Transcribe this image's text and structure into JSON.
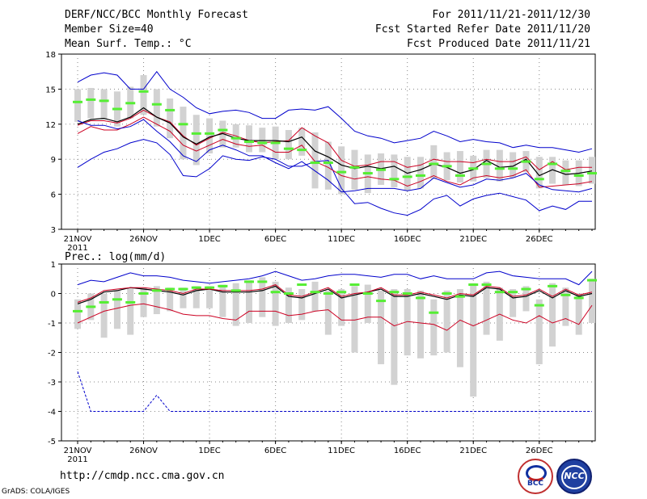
{
  "header": {
    "title": "DERF/NCC/BCC Monthly Forecast",
    "member_size": "Member Size=40",
    "variable": "Mean Surf. Temp.: °C",
    "period": "For 2011/11/21-2011/12/30",
    "fcst_started": "Fcst Started Refer Date 2011/11/20",
    "fcst_produced": "Fcst Produced Date 2011/11/21"
  },
  "footer": {
    "url": "http://cmdp.ncc.cma.gov.cn",
    "grads": "GrADS: COLA/IGES",
    "logo_bcc": "BCC",
    "logo_ncc": "NCC"
  },
  "colors": {
    "envelope": "#0000cc",
    "spread": "#cc0022",
    "mean": "#000000",
    "box": "#d2d2d2",
    "marker": "#55ee33",
    "grid": "#888888"
  },
  "chart_data": [
    {
      "type": "line",
      "title": "Mean Surf. Temp.: °C",
      "ylim": [
        3,
        18
      ],
      "yticks": [
        3,
        6,
        9,
        12,
        15,
        18
      ],
      "xtick_labels": [
        "21NOV",
        "26NOV",
        "1DEC",
        "6DEC",
        "11DEC",
        "16DEC",
        "21DEC",
        "26DEC"
      ],
      "xtick_days": [
        1,
        6,
        11,
        16,
        21,
        26,
        31,
        36
      ],
      "year_label": "2011",
      "days": 40,
      "series": [
        {
          "name": "max",
          "values": [
            8.3,
            9,
            9.6,
            9.9,
            10.4,
            10.7,
            10.4,
            9.4,
            7.6,
            7.5,
            8.2,
            9.3,
            9,
            8.9,
            9.2,
            9,
            8.4,
            8.4,
            8.8,
            8.9,
            6.5,
            5.2,
            5.3,
            4.8,
            4.4,
            4.2,
            4.7,
            5.6,
            5.9,
            5,
            5.6,
            5.9,
            6.1,
            5.8,
            5.5,
            4.6,
            5,
            4.7,
            5.4,
            5.4
          ]
        },
        {
          "name": "upper",
          "values": [
            11.9,
            12.3,
            12.3,
            12.1,
            12.5,
            13.2,
            12.6,
            12.2,
            11,
            10.2,
            10.8,
            11.3,
            11,
            10.6,
            10.4,
            10.5,
            10.6,
            11.7,
            11,
            10.4,
            8.9,
            8.4,
            8.5,
            8.8,
            8.8,
            8.3,
            8.5,
            9,
            8.8,
            8.8,
            8.7,
            9,
            8.8,
            8.8,
            9.2,
            8.1,
            8.8,
            8.1,
            8.3,
            8.3
          ]
        },
        {
          "name": "mean",
          "values": [
            12,
            12.4,
            12.5,
            12.2,
            12.6,
            13.4,
            12.6,
            12.1,
            10.9,
            10.3,
            10.9,
            11.2,
            10.8,
            10.6,
            10.6,
            10.6,
            10.5,
            10.9,
            9.7,
            9.2,
            8.5,
            8.2,
            8.4,
            8.2,
            8.4,
            7.8,
            8.1,
            8.6,
            8.3,
            7.8,
            8.1,
            8.9,
            8.3,
            8.4,
            9,
            7.6,
            8.1,
            7.7,
            7.8,
            8
          ]
        },
        {
          "name": "lower",
          "values": [
            11.2,
            11.8,
            11.5,
            11.5,
            12,
            12.6,
            12,
            11.4,
            10.2,
            9.7,
            10.2,
            10.7,
            10.3,
            10.1,
            10.2,
            9.6,
            9.6,
            10.2,
            8.8,
            8.3,
            7.6,
            7.3,
            7.5,
            7.3,
            7.2,
            6.7,
            7.1,
            7.6,
            7.1,
            6.8,
            7.4,
            7.6,
            7.4,
            7.6,
            8.1,
            6.6,
            6.7,
            6.8,
            6.9,
            7.1
          ]
        },
        {
          "name": "min",
          "values": [
            12.3,
            11.9,
            11.9,
            11.6,
            11.8,
            12.4,
            11.4,
            10.5,
            9.3,
            8.8,
            9.8,
            10.2,
            9.8,
            9.3,
            9.3,
            8.7,
            8.2,
            8.8,
            8,
            7.2,
            6.2,
            6.3,
            6.5,
            6.5,
            6.5,
            6.3,
            6.5,
            7.4,
            7,
            6.6,
            6.8,
            7.3,
            7.2,
            7.4,
            7.8,
            6.8,
            6.4,
            6.3,
            6.2,
            6.5
          ]
        },
        {
          "name": "upper_env",
          "values": [
            15.6,
            16.2,
            16.4,
            16.2,
            15,
            15,
            16.5,
            15,
            14.3,
            13.4,
            12.9,
            13.1,
            13.2,
            13,
            12.5,
            12.5,
            13.2,
            13.3,
            13.2,
            13.5,
            12.5,
            11.4,
            11,
            10.8,
            10.4,
            10.6,
            10.8,
            11.4,
            11,
            10.5,
            10.7,
            10.5,
            10.4,
            10,
            10.2,
            10,
            10,
            9.8,
            9.6,
            9.9
          ]
        }
      ],
      "boxes": [
        [
          12.2,
          15
        ],
        [
          12.5,
          15.1
        ],
        [
          12.4,
          15
        ],
        [
          11.8,
          14.8
        ],
        [
          12.5,
          15.2
        ],
        [
          12.8,
          16.2
        ],
        [
          11.8,
          15
        ],
        [
          10.8,
          14.2
        ],
        [
          9,
          13.5
        ],
        [
          8.5,
          12.8
        ],
        [
          9.5,
          12.5
        ],
        [
          10,
          12.3
        ],
        [
          10,
          12
        ],
        [
          9.6,
          11.9
        ],
        [
          9.6,
          11.7
        ],
        [
          9,
          11.8
        ],
        [
          9,
          11.5
        ],
        [
          9.3,
          11.7
        ],
        [
          6.5,
          11.3
        ],
        [
          6.4,
          10.5
        ],
        [
          6,
          10.1
        ],
        [
          6.4,
          9.8
        ],
        [
          6.1,
          9.4
        ],
        [
          6.8,
          9.5
        ],
        [
          6.6,
          9.4
        ],
        [
          6.3,
          9.2
        ],
        [
          6.5,
          9.2
        ],
        [
          7.3,
          10.2
        ],
        [
          7.2,
          9.6
        ],
        [
          7,
          9.7
        ],
        [
          7.1,
          9.3
        ],
        [
          7.4,
          9.8
        ],
        [
          7.1,
          9.8
        ],
        [
          7.4,
          9.6
        ],
        [
          7.9,
          9.7
        ],
        [
          6.5,
          9.2
        ],
        [
          6.9,
          9.2
        ],
        [
          6.8,
          8.9
        ],
        [
          6.7,
          8.9
        ],
        [
          6.9,
          9.2
        ]
      ],
      "markers": [
        13.9,
        14.1,
        14,
        13.3,
        13.8,
        14.8,
        13.7,
        13.2,
        12,
        11.2,
        11.2,
        11.5,
        10.8,
        10.5,
        10.4,
        10.4,
        9.9,
        9.8,
        8.7,
        8.7,
        7.9,
        8.3,
        7.8,
        8.1,
        7.3,
        7.5,
        7.6,
        8.6,
        8.4,
        7.6,
        8.2,
        8.6,
        8.2,
        8.2,
        8.8,
        7.3,
        8.6,
        8,
        7.6,
        7.8
      ]
    },
    {
      "type": "line",
      "title": "Prec.: log(mm/d)",
      "ylim": [
        -5,
        1
      ],
      "yticks": [
        -5,
        -4,
        -3,
        -2,
        -1,
        0,
        1
      ],
      "xtick_labels": [
        "21NOV",
        "26NOV",
        "1DEC",
        "6DEC",
        "11DEC",
        "16DEC",
        "21DEC",
        "26DEC"
      ],
      "xtick_days": [
        1,
        6,
        11,
        16,
        21,
        26,
        31,
        36
      ],
      "year_label": "2011",
      "days": 40,
      "series": [
        {
          "name": "max",
          "values": [
            0.3,
            0.45,
            0.4,
            0.55,
            0.7,
            0.6,
            0.6,
            0.55,
            0.45,
            0.4,
            0.35,
            0.4,
            0.45,
            0.5,
            0.6,
            0.75,
            0.6,
            0.45,
            0.5,
            0.6,
            0.65,
            0.65,
            0.6,
            0.55,
            0.65,
            0.65,
            0.5,
            0.6,
            0.5,
            0.5,
            0.5,
            0.7,
            0.75,
            0.6,
            0.55,
            0.5,
            0.5,
            0.5,
            0.3,
            0.75
          ]
        },
        {
          "name": "mean",
          "values": [
            -0.35,
            -0.2,
            0.05,
            0.1,
            0.2,
            0.15,
            0.1,
            0.05,
            -0.05,
            0.1,
            0.15,
            0.05,
            0.05,
            0.05,
            0.1,
            0.25,
            -0.1,
            -0.15,
            0,
            0.15,
            -0.15,
            -0.05,
            0.05,
            0.15,
            -0.1,
            -0.1,
            0,
            -0.1,
            -0.2,
            -0.05,
            -0.1,
            0.2,
            0.15,
            -0.15,
            -0.1,
            0.1,
            -0.15,
            0.1,
            -0.1,
            0
          ]
        },
        {
          "name": "upper",
          "values": [
            -0.3,
            -0.15,
            0.1,
            0.15,
            0.2,
            0.2,
            0.15,
            0.1,
            0,
            0.15,
            0.15,
            0.1,
            0.1,
            0.1,
            0.15,
            0.3,
            -0.05,
            -0.1,
            0.05,
            0.2,
            -0.1,
            0,
            0.05,
            0.2,
            -0.05,
            -0.05,
            0.05,
            -0.05,
            -0.15,
            0,
            -0.05,
            0.25,
            0.2,
            -0.1,
            -0.05,
            0.15,
            -0.1,
            0.15,
            -0.05,
            0.05
          ]
        },
        {
          "name": "lower",
          "values": [
            -1,
            -0.8,
            -0.6,
            -0.5,
            -0.4,
            -0.35,
            -0.45,
            -0.55,
            -0.7,
            -0.75,
            -0.75,
            -0.85,
            -0.9,
            -0.6,
            -0.6,
            -0.6,
            -0.75,
            -0.7,
            -0.6,
            -0.55,
            -0.9,
            -0.9,
            -0.8,
            -0.8,
            -1.1,
            -0.95,
            -1,
            -1.05,
            -1.25,
            -0.9,
            -1.1,
            -0.9,
            -0.7,
            -0.9,
            -1,
            -0.75,
            -1,
            -0.85,
            -1.05,
            -0.4
          ]
        },
        {
          "name": "min",
          "values": [
            -2.65,
            -4,
            -4,
            -4,
            -4,
            -4,
            -3.45,
            -4,
            -4,
            -4,
            -4,
            -4,
            -4,
            -4,
            -4,
            -4,
            -4,
            -4,
            -4,
            -4,
            -4,
            -4,
            -4,
            -4,
            -4,
            -4,
            -4,
            -4,
            -4,
            -4,
            -4,
            -4,
            -4,
            -4,
            -4,
            -4,
            -4,
            -4,
            -4,
            -4
          ]
        }
      ],
      "boxes": [
        [
          -1.2,
          -0.2
        ],
        [
          -0.9,
          0
        ],
        [
          -1.5,
          0
        ],
        [
          -1.2,
          0.1
        ],
        [
          -1.4,
          0.2
        ],
        [
          -0.8,
          0.2
        ],
        [
          -0.7,
          0.25
        ],
        [
          -0.6,
          0.2
        ],
        [
          -0.5,
          0.2
        ],
        [
          -0.5,
          0.25
        ],
        [
          -0.5,
          0.25
        ],
        [
          -0.8,
          0.3
        ],
        [
          -1.1,
          0.35
        ],
        [
          -1,
          0.45
        ],
        [
          -0.8,
          0.55
        ],
        [
          -1.1,
          0.4
        ],
        [
          -1,
          0.2
        ],
        [
          -0.9,
          0.15
        ],
        [
          -0.6,
          0.4
        ],
        [
          -1.4,
          0.1
        ],
        [
          -1.1,
          0.15
        ],
        [
          -2,
          0.25
        ],
        [
          -1,
          0.3
        ],
        [
          -2.4,
          0.1
        ],
        [
          -3.1,
          0.15
        ],
        [
          -2.1,
          0.15
        ],
        [
          -2.2,
          0.1
        ],
        [
          -2.1,
          -0.2
        ],
        [
          -2,
          0.1
        ],
        [
          -2.5,
          0.15
        ],
        [
          -3.5,
          0.35
        ],
        [
          -1.4,
          0.4
        ],
        [
          -1.6,
          0.2
        ],
        [
          -0.8,
          0.15
        ],
        [
          -0.6,
          0.25
        ],
        [
          -2.4,
          -0.2
        ],
        [
          -1.8,
          0.35
        ],
        [
          -1.1,
          0.2
        ],
        [
          -1.4,
          0
        ],
        [
          -1,
          0.5
        ]
      ],
      "markers": [
        -0.6,
        -0.45,
        -0.3,
        -0.2,
        -0.3,
        0,
        0.1,
        0.15,
        0.15,
        0.2,
        0.2,
        0.25,
        0.1,
        0.4,
        0.4,
        0.05,
        0,
        0.3,
        0.05,
        0,
        0.05,
        0.3,
        0,
        -0.25,
        0.05,
        0,
        -0.15,
        -0.65,
        0,
        -0.1,
        0.3,
        0.3,
        0.05,
        0.05,
        0.15,
        -0.4,
        0.25,
        -0.05,
        -0.15,
        0.45
      ]
    }
  ]
}
